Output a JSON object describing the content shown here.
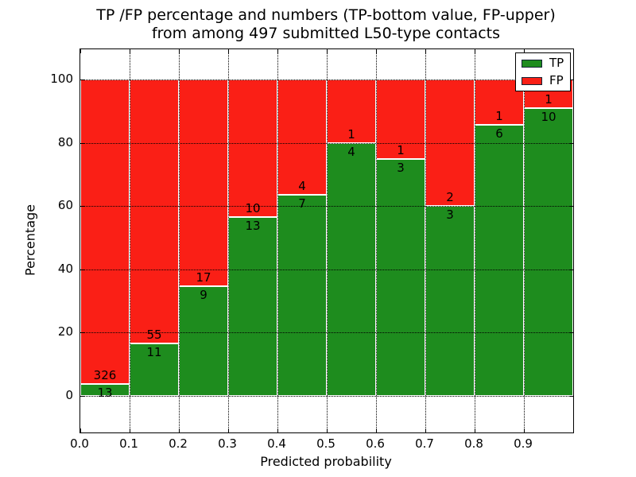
{
  "title": {
    "line1": "TP /FP percentage and numbers (TP-bottom value, FP-upper)",
    "line2": "from among 497 submitted L50-type contacts"
  },
  "axes": {
    "xlabel": "Predicted probability",
    "ylabel": "Percentage",
    "x_tick_labels": [
      "0.0",
      "0.1",
      "0.2",
      "0.3",
      "0.4",
      "0.5",
      "0.6",
      "0.7",
      "0.8",
      "0.9"
    ],
    "y_tick_labels": [
      "0",
      "20",
      "40",
      "60",
      "80",
      "100"
    ],
    "y_tick_values": [
      0,
      20,
      40,
      60,
      80,
      100
    ],
    "xlim": [
      0.0,
      1.0
    ],
    "ylim": [
      -12,
      110
    ],
    "grid": "dotted"
  },
  "legend": {
    "position": "upper right",
    "entries": [
      {
        "label": "TP",
        "color": "#1e8c1e"
      },
      {
        "label": "FP",
        "color": "#fa1f16"
      }
    ]
  },
  "chart_data": {
    "type": "bar",
    "stacked": true,
    "normalized_to_100": true,
    "title": "TP /FP percentage and numbers (TP-bottom value, FP-upper) from among 497 submitted L50-type contacts",
    "xlabel": "Predicted probability",
    "ylabel": "Percentage",
    "total_contacts": 497,
    "colors": {
      "tp": "#1e8c1e",
      "fp": "#fa1f16"
    },
    "bin_edges": [
      0.0,
      0.1,
      0.2,
      0.3,
      0.4,
      0.5,
      0.6,
      0.7,
      0.8,
      0.9,
      1.0
    ],
    "bars": [
      {
        "x_range": "0.0-0.1",
        "tp": 13,
        "fp": 326,
        "tp_pct": 3.83,
        "fp_pct": 96.17
      },
      {
        "x_range": "0.1-0.2",
        "tp": 11,
        "fp": 55,
        "tp_pct": 16.67,
        "fp_pct": 83.33
      },
      {
        "x_range": "0.2-0.3",
        "tp": 9,
        "fp": 17,
        "tp_pct": 34.62,
        "fp_pct": 65.38
      },
      {
        "x_range": "0.3-0.4",
        "tp": 13,
        "fp": 10,
        "tp_pct": 56.52,
        "fp_pct": 43.48
      },
      {
        "x_range": "0.4-0.5",
        "tp": 7,
        "fp": 4,
        "tp_pct": 63.64,
        "fp_pct": 36.36
      },
      {
        "x_range": "0.5-0.6",
        "tp": 4,
        "fp": 1,
        "tp_pct": 80.0,
        "fp_pct": 20.0
      },
      {
        "x_range": "0.6-0.7",
        "tp": 3,
        "fp": 1,
        "tp_pct": 75.0,
        "fp_pct": 25.0
      },
      {
        "x_range": "0.7-0.8",
        "tp": 3,
        "fp": 2,
        "tp_pct": 60.0,
        "fp_pct": 40.0
      },
      {
        "x_range": "0.8-0.9",
        "tp": 6,
        "fp": 1,
        "tp_pct": 85.71,
        "fp_pct": 14.29
      },
      {
        "x_range": "0.9-1.0",
        "tp": 10,
        "fp": 1,
        "tp_pct": 90.91,
        "fp_pct": 9.09
      }
    ]
  }
}
